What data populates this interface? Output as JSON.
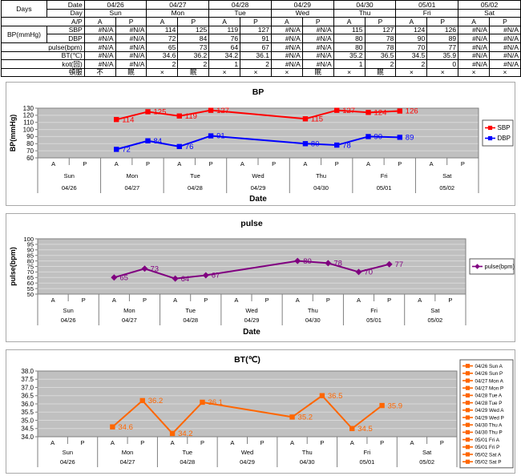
{
  "table": {
    "corner_label": "Days",
    "date_label": "Date",
    "day_label": "Day",
    "ap_label": "A/P",
    "dates": [
      "04/26",
      "04/27",
      "04/28",
      "04/29",
      "04/30",
      "05/01",
      "05/02"
    ],
    "days": [
      "Sun",
      "Mon",
      "Tue",
      "Wed",
      "Thu",
      "Fri",
      "Sat"
    ],
    "ap": [
      "A",
      "P"
    ],
    "rows": [
      {
        "key": "sbp",
        "group": "BP(mmHg)",
        "label": "SBP",
        "align": "right",
        "values": [
          "#N/A",
          "#N/A",
          "114",
          "125",
          "119",
          "127",
          "#N/A",
          "#N/A",
          "115",
          "127",
          "124",
          "126",
          "#N/A",
          "#N/A"
        ]
      },
      {
        "key": "dbp",
        "label": "DBP",
        "align": "right",
        "values": [
          "#N/A",
          "#N/A",
          "72",
          "84",
          "76",
          "91",
          "#N/A",
          "#N/A",
          "80",
          "78",
          "90",
          "89",
          "#N/A",
          "#N/A"
        ]
      },
      {
        "key": "pulse",
        "label": "pulse(bpm)",
        "align": "right",
        "values": [
          "#N/A",
          "#N/A",
          "65",
          "73",
          "64",
          "67",
          "#N/A",
          "#N/A",
          "80",
          "78",
          "70",
          "77",
          "#N/A",
          "#N/A"
        ]
      },
      {
        "key": "bt",
        "label": "BT(℃)",
        "align": "right",
        "values": [
          "#N/A",
          "#N/A",
          "34.6",
          "36.2",
          "34.2",
          "36.1",
          "#N/A",
          "#N/A",
          "35.2",
          "36.5",
          "34.5",
          "35.9",
          "#N/A",
          "#N/A"
        ]
      },
      {
        "key": "kot",
        "label": "kot(回)",
        "align": "right",
        "values": [
          "#N/A",
          "#N/A",
          "2",
          "2",
          "1",
          "2",
          "#N/A",
          "#N/A",
          "1",
          "2",
          "2",
          "0",
          "#N/A",
          "#N/A"
        ]
      },
      {
        "key": "tonpuku",
        "label": "頓服",
        "align": "center",
        "values": [
          "不",
          "眠",
          "×",
          "眠",
          "×",
          "×",
          "×",
          "眠",
          "×",
          "眠",
          "×",
          "×",
          "×",
          "×"
        ]
      }
    ]
  },
  "xaxis": {
    "ap": [
      "A",
      "P"
    ],
    "days": [
      "Sun",
      "Mon",
      "Tue",
      "Wed",
      "Thu",
      "Fri",
      "Sat"
    ],
    "dates": [
      "04/26",
      "04/27",
      "04/28",
      "04/29",
      "04/30",
      "05/01",
      "05/02"
    ]
  },
  "colors": {
    "sbp": "#FF0000",
    "dbp": "#0000FF",
    "pulse": "#800080",
    "bt": "#FF6600",
    "plot_bg": "#C0C0C0",
    "gridline": "#D9D9D9",
    "axis": "#7F7F7F"
  },
  "chart_data": [
    {
      "id": "bp",
      "type": "line",
      "title": "BP",
      "ylabel": "BP(mmHg)",
      "xlabel": "Date",
      "ylim": [
        60,
        130
      ],
      "ystep": 10,
      "ydecimals": 0,
      "yticks": [
        60,
        70,
        80,
        90,
        100,
        110,
        120,
        130
      ],
      "grid": true,
      "legend_position": "right",
      "x_categories_ap": [
        "A",
        "P"
      ],
      "x_groups_days": [
        "Sun",
        "Mon",
        "Tue",
        "Wed",
        "Thu",
        "Fri",
        "Sat"
      ],
      "x_groups_dates": [
        "04/26",
        "04/27",
        "04/28",
        "04/29",
        "04/30",
        "05/01",
        "05/02"
      ],
      "series": [
        {
          "name": "SBP",
          "color": "#FF0000",
          "marker": "square",
          "values": [
            null,
            null,
            114,
            125,
            119,
            127,
            null,
            null,
            115,
            127,
            124,
            126,
            null,
            null
          ]
        },
        {
          "name": "DBP",
          "color": "#0000FF",
          "marker": "square",
          "values": [
            null,
            null,
            72,
            84,
            76,
            91,
            null,
            null,
            80,
            78,
            90,
            89,
            null,
            null
          ]
        }
      ],
      "legend": [
        {
          "label": "SBP",
          "color": "#FF0000",
          "marker": "square"
        },
        {
          "label": "DBP",
          "color": "#0000FF",
          "marker": "square"
        }
      ]
    },
    {
      "id": "pulse",
      "type": "line",
      "title": "pulse",
      "ylabel": "pulse(bpm)",
      "xlabel": "Date",
      "ylim": [
        50,
        100
      ],
      "ystep": 5,
      "ydecimals": 0,
      "yticks": [
        50,
        55,
        60,
        65,
        70,
        75,
        80,
        85,
        90,
        95,
        100
      ],
      "grid": true,
      "legend_position": "right",
      "x_categories_ap": [
        "A",
        "P"
      ],
      "x_groups_days": [
        "Sun",
        "Mon",
        "Tue",
        "Wed",
        "Thu",
        "Fri",
        "Sat"
      ],
      "x_groups_dates": [
        "04/26",
        "04/27",
        "04/28",
        "04/29",
        "04/30",
        "05/01",
        "05/02"
      ],
      "series": [
        {
          "name": "pulse(bpm)",
          "color": "#800080",
          "marker": "diamond",
          "values": [
            null,
            null,
            65,
            73,
            64,
            67,
            null,
            null,
            80,
            78,
            70,
            77,
            null,
            null
          ]
        }
      ],
      "legend": [
        {
          "label": "pulse(bpm)",
          "color": "#800080",
          "marker": "diamond"
        }
      ]
    },
    {
      "id": "bt",
      "type": "line",
      "title": "BT(℃)",
      "ylabel": "",
      "xlabel": "",
      "ylim": [
        34.0,
        38.0
      ],
      "ystep": 0.5,
      "ydecimals": 1,
      "yticks": [
        34.0,
        34.5,
        35.0,
        35.5,
        36.0,
        36.5,
        37.0,
        37.5,
        38.0
      ],
      "grid": true,
      "legend_position": "right",
      "x_categories_ap": [
        "A",
        "P"
      ],
      "x_groups_days": [
        "Sun",
        "Mon",
        "Tue",
        "Wed",
        "Thu",
        "Fri",
        "Sat"
      ],
      "x_groups_dates": [
        "04/26",
        "04/27",
        "04/28",
        "04/29",
        "04/30",
        "05/01",
        "05/02"
      ],
      "series": [
        {
          "name": "BT",
          "color": "#FF6600",
          "marker": "square",
          "values": [
            null,
            null,
            34.6,
            36.2,
            34.2,
            36.1,
            null,
            null,
            35.2,
            36.5,
            34.5,
            35.9,
            null,
            null
          ]
        }
      ],
      "legend": [
        {
          "label": "04/26 Sun A",
          "color": "#FF6600",
          "marker": "square"
        },
        {
          "label": "04/26 Sun P",
          "color": "#FF6600",
          "marker": "square"
        },
        {
          "label": "04/27 Mon A",
          "color": "#FF6600",
          "marker": "square"
        },
        {
          "label": "04/27 Mon P",
          "color": "#FF6600",
          "marker": "square"
        },
        {
          "label": "04/28 Tue A",
          "color": "#FF6600",
          "marker": "square"
        },
        {
          "label": "04/28 Tue P",
          "color": "#FF6600",
          "marker": "square"
        },
        {
          "label": "04/29 Wed A",
          "color": "#FF6600",
          "marker": "square"
        },
        {
          "label": "04/29 Wed P",
          "color": "#FF6600",
          "marker": "square"
        },
        {
          "label": "04/30 Thu A",
          "color": "#FF6600",
          "marker": "square"
        },
        {
          "label": "04/30 Thu P",
          "color": "#FF6600",
          "marker": "square"
        },
        {
          "label": "05/01 Fri A",
          "color": "#FF6600",
          "marker": "square"
        },
        {
          "label": "05/01 Fri P",
          "color": "#FF6600",
          "marker": "square"
        },
        {
          "label": "05/02 Sat A",
          "color": "#FF6600",
          "marker": "square"
        },
        {
          "label": "05/02 Sat P",
          "color": "#FF6600",
          "marker": "square"
        }
      ]
    }
  ]
}
